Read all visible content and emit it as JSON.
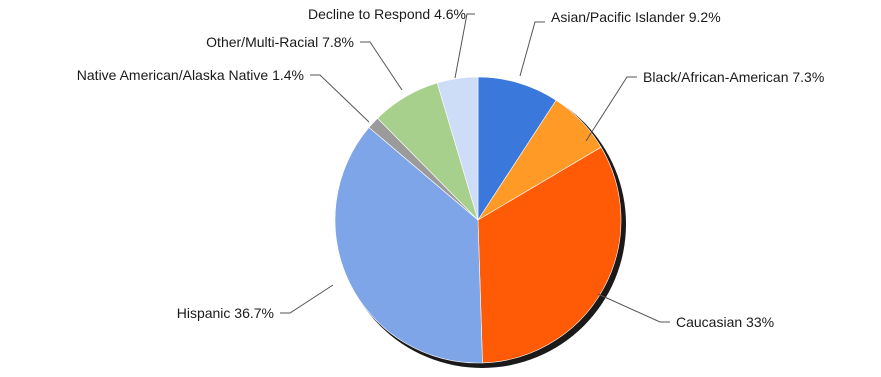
{
  "chart_data": {
    "type": "pie",
    "title": "",
    "slices": [
      {
        "label": "Asian/Pacific Islander 9.2%",
        "value": 9.2,
        "color": "#3a78db"
      },
      {
        "label": "Black/African-American 7.3%",
        "value": 7.3,
        "color": "#ff9a27"
      },
      {
        "label": "Caucasian 33%",
        "value": 33.0,
        "color": "#ff5a05"
      },
      {
        "label": "Hispanic 36.7%",
        "value": 36.7,
        "color": "#7ea5e8"
      },
      {
        "label": "Native American/Alaska Native 1.4%",
        "value": 1.4,
        "color": "#9b9b9b"
      },
      {
        "label": "Other/Multi-Racial 7.8%",
        "value": 7.8,
        "color": "#a8d08d"
      },
      {
        "label": "Decline to Respond 4.6%",
        "value": 4.6,
        "color": "#cddcf7"
      }
    ],
    "start_angle": "12 o'clock",
    "direction": "clockwise",
    "legend": "none",
    "labels": "outside with leader lines"
  }
}
